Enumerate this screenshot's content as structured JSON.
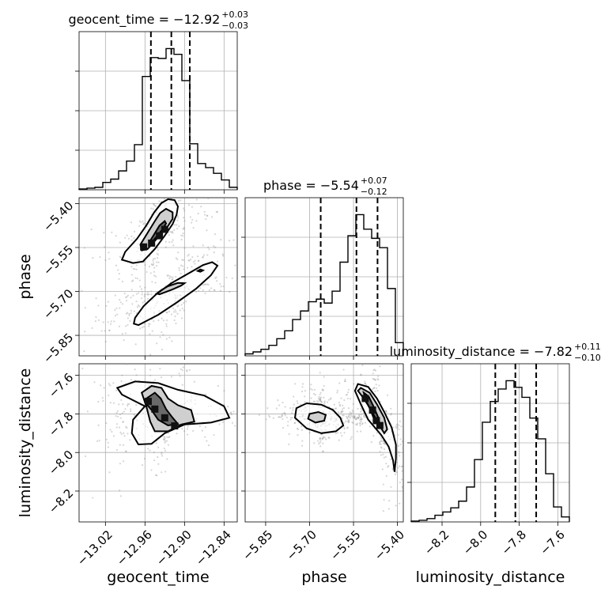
{
  "chart_data": {
    "type": "corner",
    "parameters": [
      "geocent_time",
      "phase",
      "luminosity_distance"
    ],
    "axis_labels": {
      "geocent_time": "geocent_time",
      "phase": "phase",
      "luminosity_distance": "luminosity_distance"
    },
    "ranges": {
      "geocent_time": [
        -13.06,
        -12.82
      ],
      "phase": [
        -5.92,
        -5.38
      ],
      "luminosity_distance": [
        -8.36,
        -7.54
      ]
    },
    "ticks": {
      "geocent_time": {
        "values": [
          -13.02,
          -12.96,
          -12.9,
          -12.84
        ],
        "labels": [
          "−13.02",
          "−12.96",
          "−12.90",
          "−12.84"
        ]
      },
      "phase": {
        "values": [
          -5.85,
          -5.7,
          -5.55,
          -5.4
        ],
        "labels": [
          "−5.85",
          "−5.70",
          "−5.55",
          "−5.40"
        ]
      },
      "luminosity_distance": {
        "values": [
          -8.2,
          -8.0,
          -7.8,
          -7.6
        ],
        "labels": [
          "−8.2",
          "−8.0",
          "−7.8",
          "−7.6"
        ]
      }
    },
    "titles": {
      "geocent_time": {
        "main": "geocent_time = −12.92",
        "sup": "+0.03",
        "sub": "−0.03"
      },
      "phase": {
        "main": "phase = −5.54",
        "sup": "+0.07",
        "sub": "−0.12"
      },
      "luminosity_distance": {
        "main": "luminosity_distance = −7.82",
        "sup": "+0.11",
        "sub": "−0.10"
      }
    },
    "quantiles": {
      "geocent_time": [
        -12.951,
        -12.92,
        -12.892
      ],
      "phase": [
        -5.662,
        -5.54,
        -5.468
      ],
      "luminosity_distance": [
        -7.924,
        -7.82,
        -7.712
      ]
    },
    "histograms": {
      "geocent_time": {
        "edges": [
          -13.06,
          -13.048,
          -13.036,
          -13.024,
          -13.012,
          -13.0,
          -12.988,
          -12.976,
          -12.964,
          -12.952,
          -12.94,
          -12.928,
          -12.916,
          -12.904,
          -12.892,
          -12.88,
          -12.868,
          -12.856,
          -12.844,
          -12.832,
          -12.82
        ],
        "counts": [
          1,
          2,
          3,
          9,
          13,
          23,
          35,
          55,
          138,
          161,
          160,
          172,
          165,
          133,
          56,
          32,
          27,
          20,
          12,
          3
        ]
      },
      "phase": {
        "edges": [
          -5.92,
          -5.893,
          -5.866,
          -5.839,
          -5.812,
          -5.785,
          -5.758,
          -5.731,
          -5.704,
          -5.677,
          -5.65,
          -5.623,
          -5.596,
          -5.569,
          -5.542,
          -5.515,
          -5.488,
          -5.461,
          -5.434,
          -5.407,
          -5.38
        ],
        "counts": [
          3,
          6,
          10,
          16,
          26,
          38,
          55,
          68,
          82,
          86,
          80,
          98,
          142,
          182,
          214,
          192,
          178,
          164,
          102,
          20
        ]
      },
      "luminosity_distance": {
        "edges": [
          -8.36,
          -8.319,
          -8.278,
          -8.237,
          -8.196,
          -8.155,
          -8.114,
          -8.073,
          -8.032,
          -7.991,
          -7.95,
          -7.909,
          -7.868,
          -7.827,
          -7.786,
          -7.745,
          -7.704,
          -7.663,
          -7.622,
          -7.581,
          -7.54
        ],
        "counts": [
          1,
          2,
          4,
          8,
          12,
          17,
          25,
          42,
          75,
          120,
          145,
          160,
          170,
          162,
          150,
          125,
          100,
          58,
          18,
          6
        ]
      }
    },
    "contours_2d": [
      {
        "x": "geocent_time",
        "y": "phase",
        "outer": [
          [
            [
              -12.963,
              -5.598
            ],
            [
              -12.945,
              -5.555
            ],
            [
              -12.93,
              -5.51
            ],
            [
              -12.918,
              -5.47
            ],
            [
              -12.912,
              -5.438
            ],
            [
              -12.91,
              -5.41
            ],
            [
              -12.915,
              -5.388
            ],
            [
              -12.925,
              -5.385
            ],
            [
              -12.935,
              -5.398
            ],
            [
              -12.946,
              -5.43
            ],
            [
              -12.958,
              -5.475
            ],
            [
              -12.972,
              -5.52
            ],
            [
              -12.99,
              -5.565
            ],
            [
              -12.995,
              -5.592
            ],
            [
              -12.978,
              -5.603
            ]
          ],
          [
            [
              -12.97,
              -5.815
            ],
            [
              -12.94,
              -5.78
            ],
            [
              -12.91,
              -5.735
            ],
            [
              -12.882,
              -5.69
            ],
            [
              -12.86,
              -5.645
            ],
            [
              -12.85,
              -5.612
            ],
            [
              -12.858,
              -5.6
            ],
            [
              -12.872,
              -5.61
            ],
            [
              -12.895,
              -5.64
            ],
            [
              -12.92,
              -5.672
            ],
            [
              -12.943,
              -5.71
            ],
            [
              -12.962,
              -5.75
            ],
            [
              -12.975,
              -5.79
            ],
            [
              -12.977,
              -5.81
            ]
          ]
        ],
        "inner": [
          [
            [
              -12.956,
              -5.555
            ],
            [
              -12.94,
              -5.515
            ],
            [
              -12.926,
              -5.48
            ],
            [
              -12.918,
              -5.452
            ],
            [
              -12.918,
              -5.43
            ],
            [
              -12.928,
              -5.418
            ],
            [
              -12.937,
              -5.432
            ],
            [
              -12.945,
              -5.46
            ],
            [
              -12.956,
              -5.5
            ],
            [
              -12.967,
              -5.54
            ],
            [
              -12.965,
              -5.56
            ]
          ],
          [
            [
              -12.938,
              -5.71
            ],
            [
              -12.918,
              -5.693
            ],
            [
              -12.905,
              -5.68
            ],
            [
              -12.9,
              -5.672
            ],
            [
              -12.91,
              -5.671
            ],
            [
              -12.925,
              -5.682
            ],
            [
              -12.935,
              -5.695
            ],
            [
              -12.942,
              -5.707
            ]
          ]
        ],
        "core": [
          [
            [
              -12.948,
              -5.528
            ],
            [
              -12.934,
              -5.49
            ],
            [
              -12.928,
              -5.468
            ],
            [
              -12.93,
              -5.46
            ],
            [
              -12.938,
              -5.475
            ],
            [
              -12.946,
              -5.505
            ],
            [
              -12.953,
              -5.53
            ]
          ],
          [
            [
              -12.88,
              -5.63
            ],
            [
              -12.876,
              -5.625
            ],
            [
              -12.872,
              -5.628
            ],
            [
              -12.876,
              -5.633
            ]
          ]
        ]
      },
      {
        "x": "geocent_time",
        "y": "luminosity_distance",
        "outer": [
          [
            [
              -13.002,
              -7.665
            ],
            [
              -12.975,
              -7.632
            ],
            [
              -12.94,
              -7.64
            ],
            [
              -12.91,
              -7.675
            ],
            [
              -12.87,
              -7.705
            ],
            [
              -12.84,
              -7.76
            ],
            [
              -12.832,
              -7.82
            ],
            [
              -12.86,
              -7.845
            ],
            [
              -12.9,
              -7.855
            ],
            [
              -12.93,
              -7.9
            ],
            [
              -12.95,
              -7.955
            ],
            [
              -12.97,
              -7.958
            ],
            [
              -12.98,
              -7.9
            ],
            [
              -12.978,
              -7.83
            ],
            [
              -12.96,
              -7.76
            ],
            [
              -12.995,
              -7.7
            ]
          ]
        ],
        "inner": [
          [
            [
              -12.965,
              -7.69
            ],
            [
              -12.95,
              -7.655
            ],
            [
              -12.935,
              -7.665
            ],
            [
              -12.925,
              -7.72
            ],
            [
              -12.91,
              -7.755
            ],
            [
              -12.89,
              -7.78
            ],
            [
              -12.885,
              -7.84
            ],
            [
              -12.905,
              -7.855
            ],
            [
              -12.925,
              -7.89
            ],
            [
              -12.945,
              -7.89
            ],
            [
              -12.952,
              -7.84
            ],
            [
              -12.958,
              -7.76
            ]
          ]
        ],
        "core": [
          [
            [
              -12.958,
              -7.72
            ],
            [
              -12.945,
              -7.69
            ],
            [
              -12.936,
              -7.72
            ],
            [
              -12.928,
              -7.775
            ],
            [
              -12.918,
              -7.82
            ],
            [
              -12.91,
              -7.852
            ],
            [
              -12.925,
              -7.86
            ],
            [
              -12.94,
              -7.83
            ],
            [
              -12.95,
              -7.78
            ],
            [
              -12.96,
              -7.74
            ]
          ]
        ]
      },
      {
        "x": "phase",
        "y": "luminosity_distance",
        "outer": [
          [
            [
              -5.745,
              -7.77
            ],
            [
              -5.71,
              -7.745
            ],
            [
              -5.66,
              -7.752
            ],
            [
              -5.62,
              -7.78
            ],
            [
              -5.595,
              -7.82
            ],
            [
              -5.585,
              -7.86
            ],
            [
              -5.61,
              -7.89
            ],
            [
              -5.66,
              -7.9
            ],
            [
              -5.71,
              -7.875
            ],
            [
              -5.75,
              -7.82
            ]
          ],
          [
            [
              -5.535,
              -7.645
            ],
            [
              -5.5,
              -7.66
            ],
            [
              -5.47,
              -7.72
            ],
            [
              -5.445,
              -7.79
            ],
            [
              -5.42,
              -7.87
            ],
            [
              -5.405,
              -7.96
            ],
            [
              -5.405,
              -8.03
            ],
            [
              -5.41,
              -8.1
            ],
            [
              -5.415,
              -8.04
            ],
            [
              -5.43,
              -7.97
            ],
            [
              -5.455,
              -7.91
            ],
            [
              -5.5,
              -7.83
            ],
            [
              -5.525,
              -7.75
            ],
            [
              -5.545,
              -7.68
            ]
          ]
        ],
        "inner": [
          [
            [
              -5.7,
              -7.8
            ],
            [
              -5.67,
              -7.79
            ],
            [
              -5.645,
              -7.805
            ],
            [
              -5.65,
              -7.835
            ],
            [
              -5.68,
              -7.845
            ],
            [
              -5.705,
              -7.825
            ]
          ],
          [
            [
              -5.525,
              -7.665
            ],
            [
              -5.495,
              -7.69
            ],
            [
              -5.47,
              -7.75
            ],
            [
              -5.445,
              -7.82
            ],
            [
              -5.435,
              -7.88
            ],
            [
              -5.445,
              -7.9
            ],
            [
              -5.465,
              -7.85
            ],
            [
              -5.49,
              -7.78
            ],
            [
              -5.515,
              -7.72
            ],
            [
              -5.535,
              -7.68
            ]
          ]
        ],
        "core": [
          [
            [
              -5.515,
              -7.69
            ],
            [
              -5.498,
              -7.71
            ],
            [
              -5.482,
              -7.76
            ],
            [
              -5.465,
              -7.82
            ],
            [
              -5.46,
              -7.86
            ],
            [
              -5.475,
              -7.845
            ],
            [
              -5.492,
              -7.78
            ],
            [
              -5.508,
              -7.73
            ]
          ]
        ]
      }
    ],
    "peak_squares": [
      {
        "x": "geocent_time",
        "y": "phase",
        "points": [
          [
            -12.962,
            -5.548
          ],
          [
            -12.95,
            -5.535
          ],
          [
            -12.938,
            -5.51
          ],
          [
            -12.93,
            -5.488
          ]
        ]
      },
      {
        "x": "geocent_time",
        "y": "luminosity_distance",
        "points": [
          [
            -12.955,
            -7.735
          ],
          [
            -12.945,
            -7.775
          ],
          [
            -12.93,
            -7.82
          ],
          [
            -12.915,
            -7.862
          ]
        ]
      },
      {
        "x": "phase",
        "y": "luminosity_distance",
        "points": [
          [
            -5.51,
            -7.72
          ],
          [
            -5.485,
            -7.78
          ],
          [
            -5.472,
            -7.835
          ],
          [
            -5.46,
            -7.86
          ]
        ]
      }
    ],
    "grid": true
  }
}
